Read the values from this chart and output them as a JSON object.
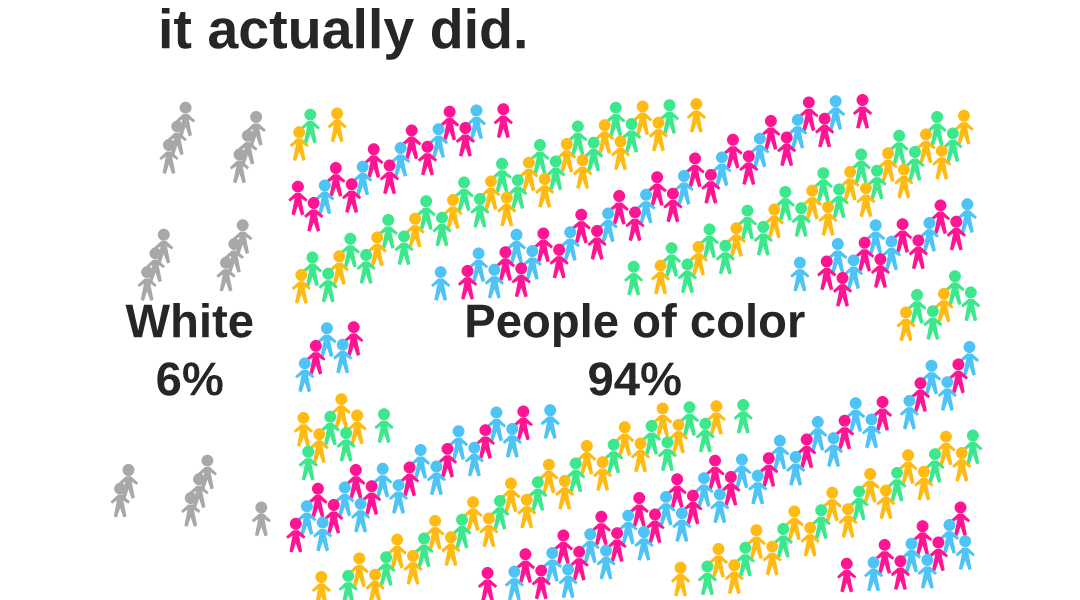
{
  "chart_data": {
    "type": "other",
    "title": "it actually did.",
    "categories": [
      "White",
      "People of color"
    ],
    "values": [
      6,
      94
    ],
    "value_labels": [
      "6%",
      "94%"
    ]
  }
}
